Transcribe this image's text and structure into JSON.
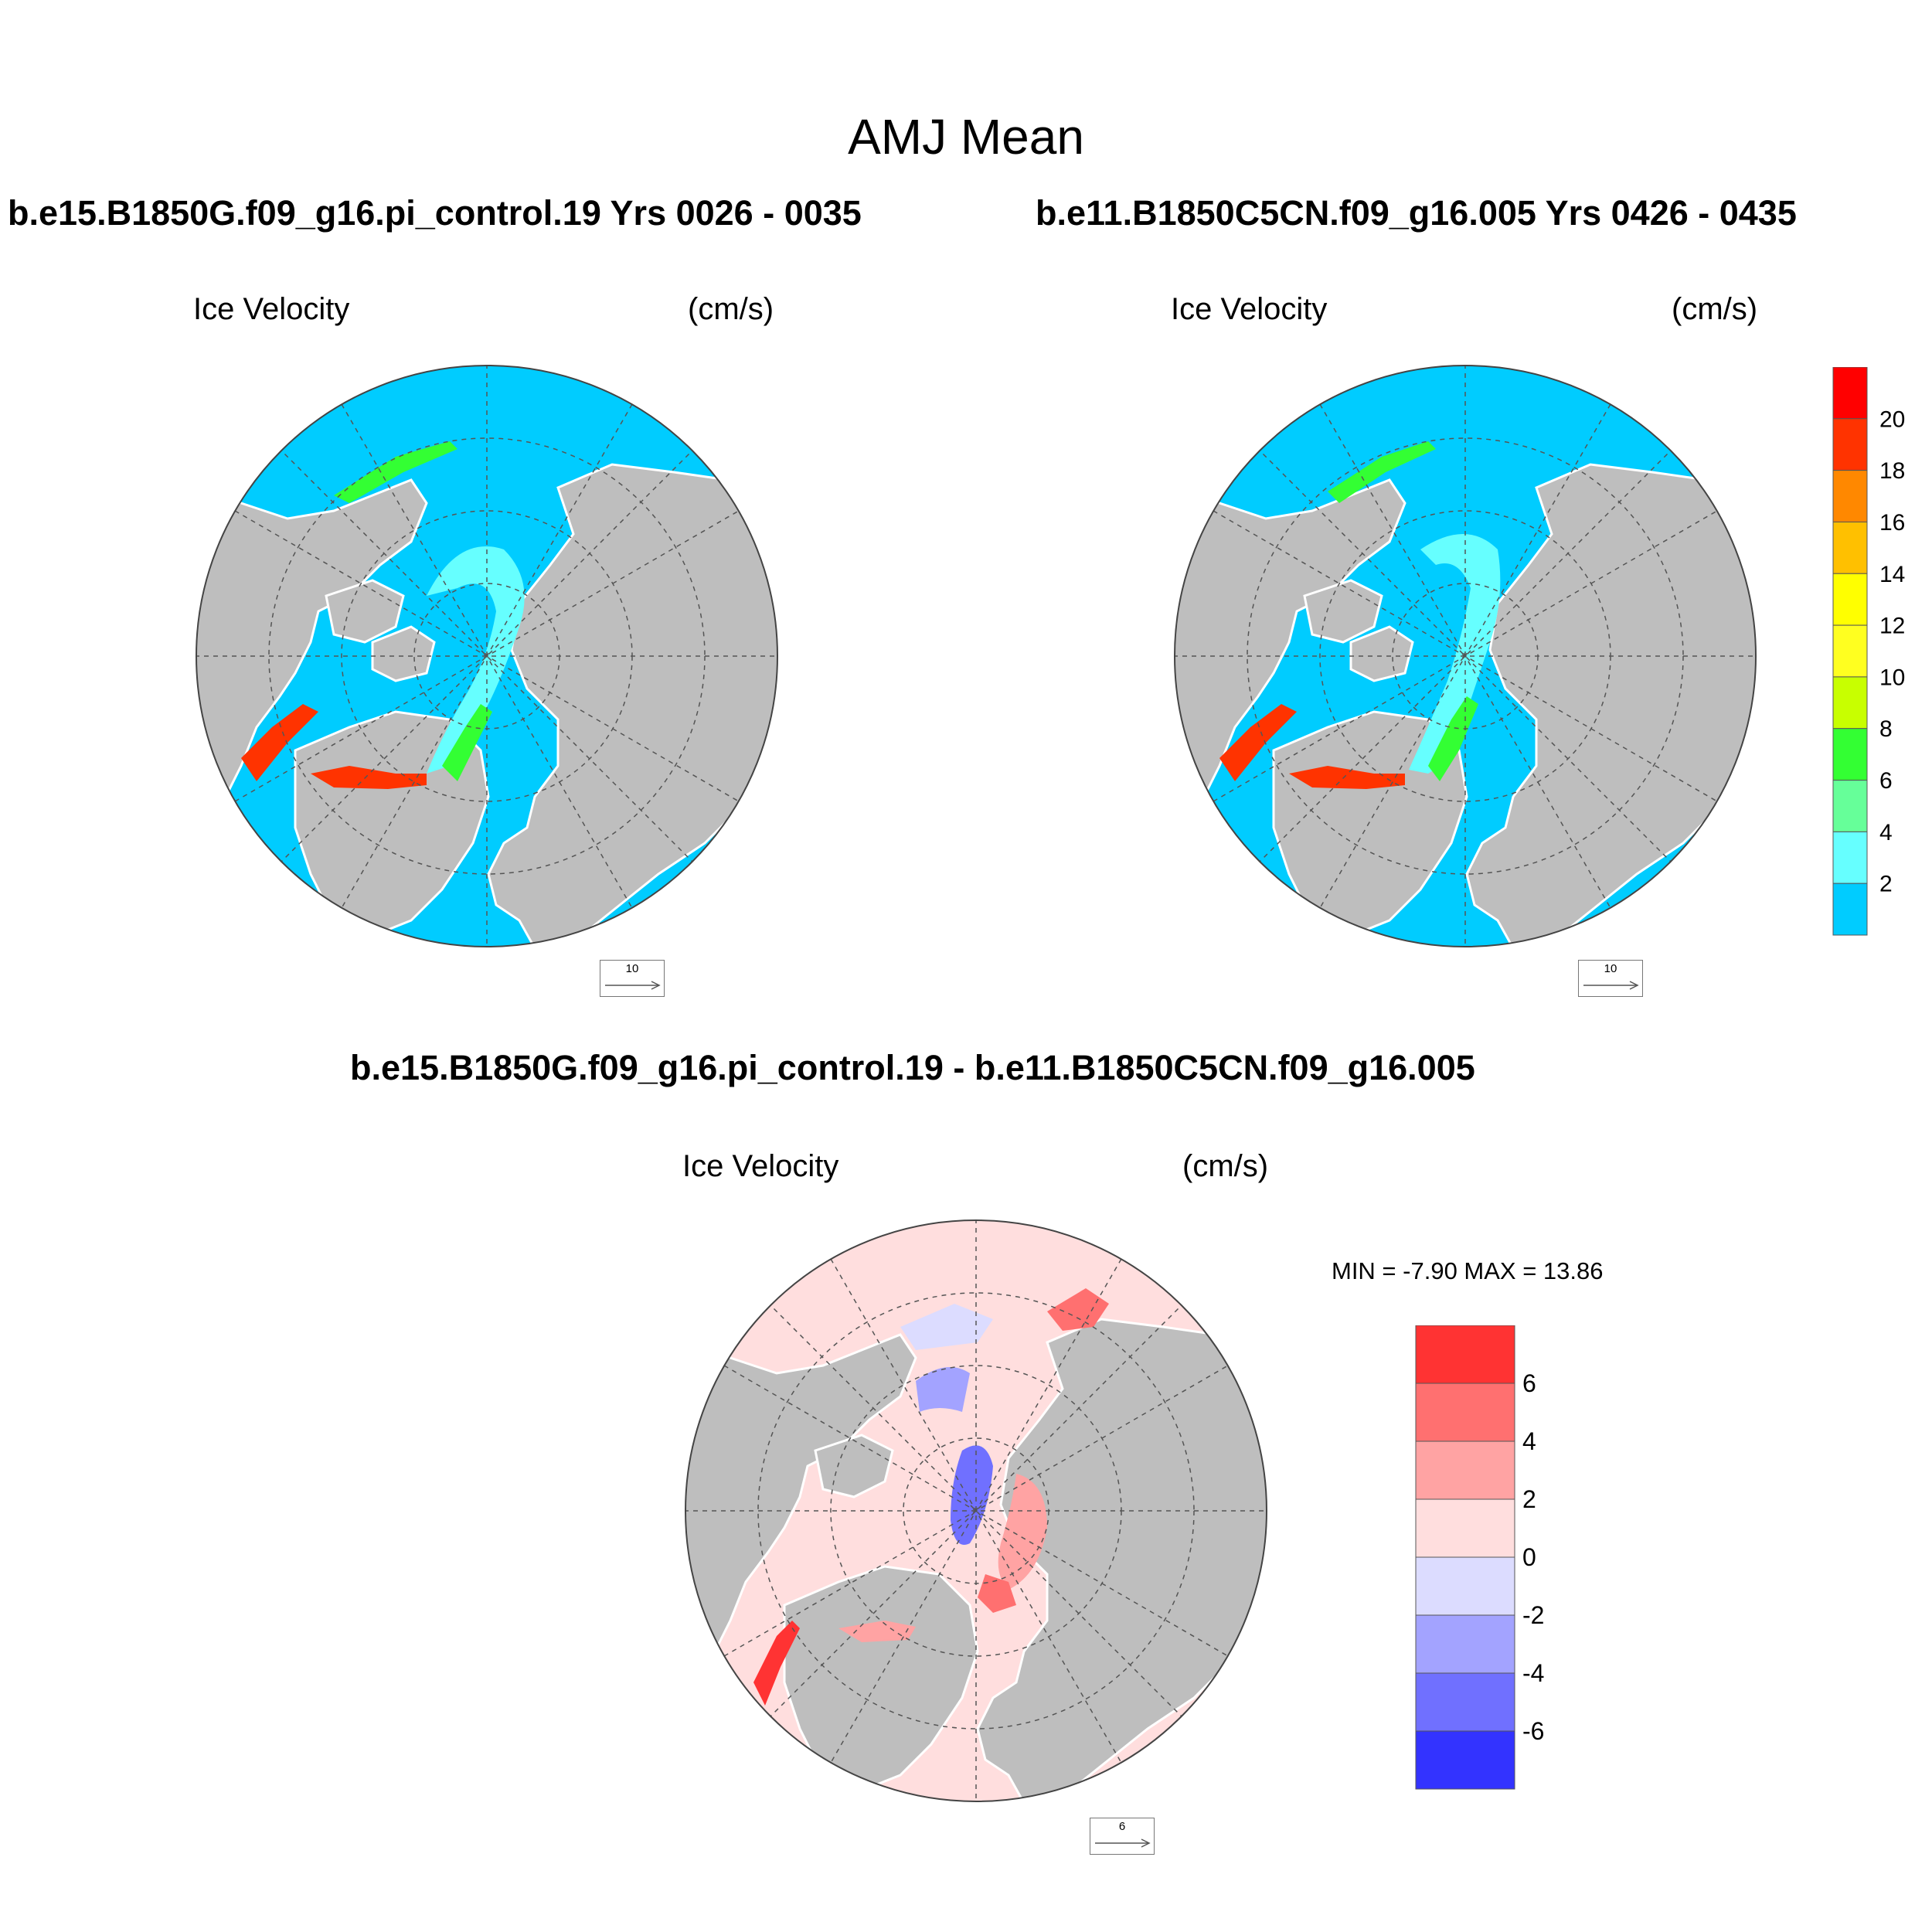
{
  "main_title": "AMJ Mean",
  "panels": [
    {
      "case_title": "b.e15.B1850G.f09_g16.pi_control.19  Yrs 0026 - 0035",
      "variable": "Ice Velocity",
      "units": "(cm/s)",
      "ref_vector": "10"
    },
    {
      "case_title": "b.e11.B1850C5CN.f09_g16.005  Yrs 0426 - 0435",
      "variable": "Ice Velocity",
      "units": "(cm/s)",
      "ref_vector": "10"
    },
    {
      "case_title": "b.e15.B1850G.f09_g16.pi_control.19 - b.e11.B1850C5CN.f09_g16.005",
      "variable": "Ice Velocity",
      "units": "(cm/s)",
      "ref_vector": "6",
      "minmax": "MIN =  -7.90 MAX =  13.86"
    }
  ],
  "colorbar_top": {
    "labels": [
      "20",
      "18",
      "16",
      "14",
      "12",
      "10",
      "8",
      "6",
      "4",
      "2"
    ],
    "colors": [
      "#ff0000",
      "#ff3300",
      "#ff8800",
      "#ffc000",
      "#ffff00",
      "#ffff20",
      "#c8ff00",
      "#33ff33",
      "#66ff99",
      "#66ffff",
      "#00ccff"
    ]
  },
  "colorbar_diff": {
    "labels": [
      "6",
      "4",
      "2",
      "0",
      "-2",
      "-4",
      "-6"
    ],
    "colors": [
      "#ff3333",
      "#ff7070",
      "#ffa3a3",
      "#ffdede",
      "#dcdcff",
      "#a3a3ff",
      "#7070ff",
      "#3333ff"
    ]
  },
  "map_colors": {
    "land": "#bebebe",
    "open_ocean_top": "#00ccff",
    "open_ocean_diff": "#ffdede",
    "coast": "#ffffff"
  }
}
